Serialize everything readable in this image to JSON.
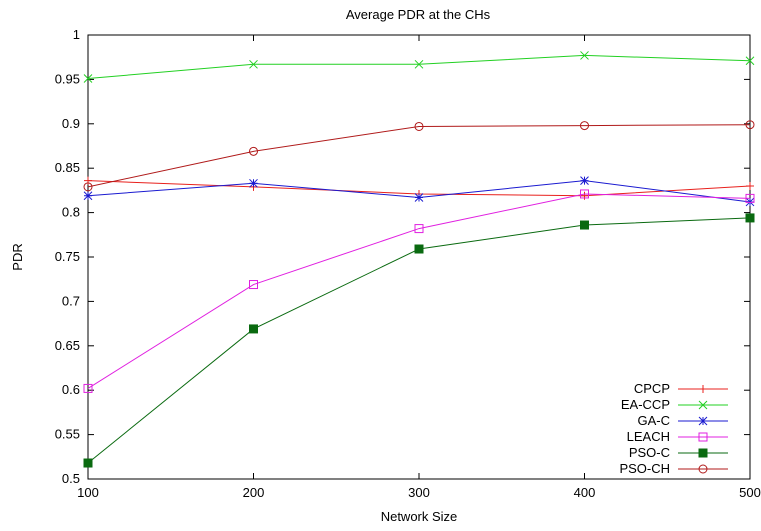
{
  "chart_data": {
    "type": "line",
    "title": "Average PDR at the CHs",
    "xlabel": "Network Size",
    "ylabel": "PDR",
    "xlim": [
      100,
      500
    ],
    "ylim": [
      0.5,
      1
    ],
    "x": [
      100,
      200,
      300,
      400,
      500
    ],
    "xticks": [
      "100",
      "200",
      "300",
      "400",
      "500"
    ],
    "yticks": [
      "0.5",
      "0.55",
      "0.6",
      "0.65",
      "0.7",
      "0.75",
      "0.8",
      "0.85",
      "0.9",
      "0.95",
      "1"
    ],
    "grid": false,
    "legend_position": "bottom-right",
    "series": [
      {
        "name": "CPCP",
        "color": "#e8201c",
        "marker": "plus",
        "values": [
          0.836,
          0.829,
          0.821,
          0.819,
          0.83
        ]
      },
      {
        "name": "EA-CCP",
        "color": "#22d022",
        "marker": "cross",
        "values": [
          0.951,
          0.967,
          0.967,
          0.977,
          0.971
        ]
      },
      {
        "name": "GA-C",
        "color": "#1a1ad0",
        "marker": "star",
        "values": [
          0.819,
          0.833,
          0.817,
          0.836,
          0.812
        ]
      },
      {
        "name": "LEACH",
        "color": "#e020e0",
        "marker": "open-square",
        "values": [
          0.602,
          0.719,
          0.782,
          0.821,
          0.816
        ]
      },
      {
        "name": "PSO-C",
        "color": "#0a6a10",
        "marker": "filled-square",
        "values": [
          0.518,
          0.669,
          0.759,
          0.786,
          0.794
        ]
      },
      {
        "name": "PSO-CH",
        "color": "#b01a1a",
        "marker": "open-circle",
        "values": [
          0.829,
          0.869,
          0.897,
          0.898,
          0.899
        ]
      }
    ]
  }
}
